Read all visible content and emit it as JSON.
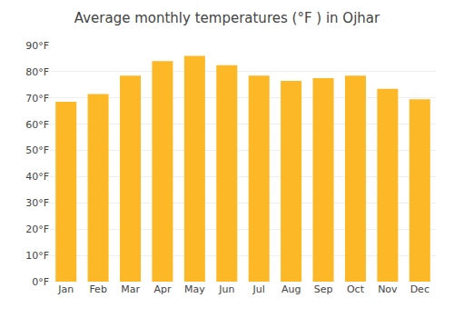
{
  "chart_data": {
    "type": "bar",
    "title": "Average monthly temperatures (°F ) in Ojhar",
    "categories": [
      "Jan",
      "Feb",
      "Mar",
      "Apr",
      "May",
      "Jun",
      "Jul",
      "Aug",
      "Sep",
      "Oct",
      "Nov",
      "Dec"
    ],
    "values": [
      68.5,
      71.5,
      78.5,
      84.0,
      86.0,
      82.5,
      78.5,
      76.5,
      77.5,
      78.5,
      73.5,
      69.5
    ],
    "color": "#FDB827",
    "ylim": [
      0,
      90
    ],
    "yticks": [
      {
        "value": 0,
        "label": "0°F"
      },
      {
        "value": 10,
        "label": "10°F"
      },
      {
        "value": 20,
        "label": "20°F"
      },
      {
        "value": 30,
        "label": "30°F"
      },
      {
        "value": 40,
        "label": "40°F"
      },
      {
        "value": 50,
        "label": "50°F"
      },
      {
        "value": 60,
        "label": "60°F"
      },
      {
        "value": 70,
        "label": "70°F"
      },
      {
        "value": 80,
        "label": "80°F"
      },
      {
        "value": 90,
        "label": "90°F"
      }
    ],
    "grid": true
  }
}
